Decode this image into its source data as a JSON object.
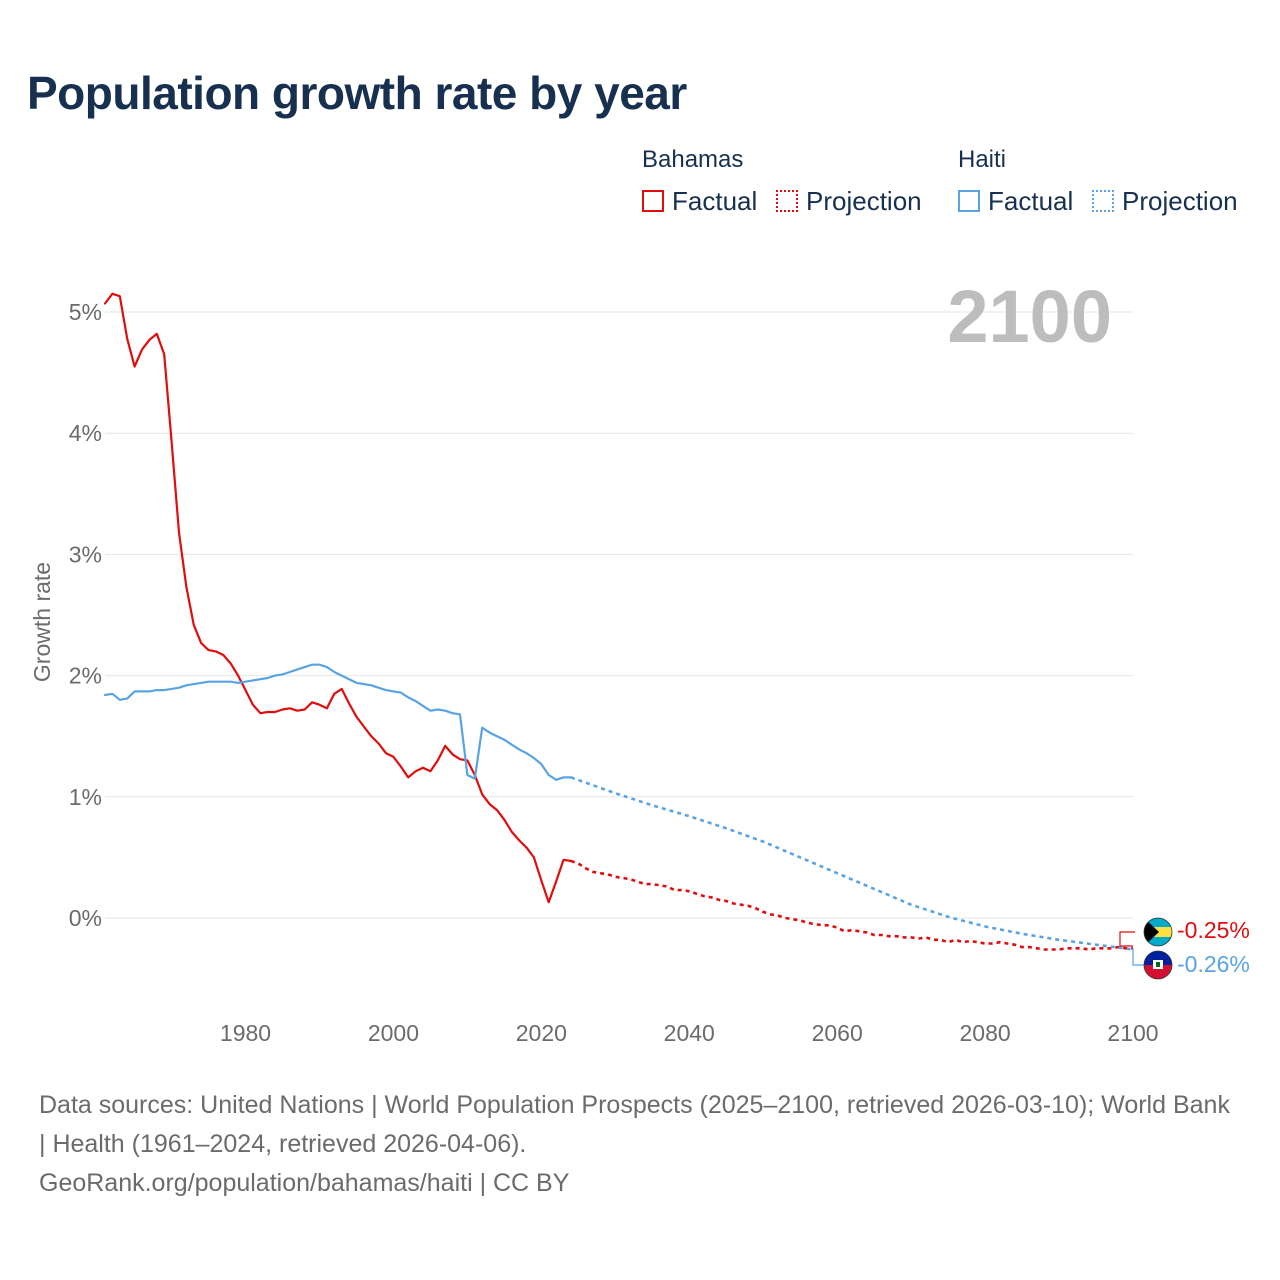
{
  "title": "Population growth rate by year",
  "legend": {
    "groups": [
      {
        "country": "Bahamas",
        "factual_label": "Factual",
        "projection_label": "Projection",
        "color": "#e00d0d"
      },
      {
        "country": "Haiti",
        "factual_label": "Factual",
        "projection_label": "Projection",
        "color": "#5aa3e3"
      }
    ]
  },
  "year_marker": "2100",
  "end_labels": {
    "bahamas": "-0.25%",
    "haiti": "-0.26%"
  },
  "footer": {
    "sources": "Data sources: United Nations | World Population Prospects (2025–2100, retrieved 2026-03-10); World Bank | Health (1961–2024, retrieved 2026-04-06).",
    "credit": "GeoRank.org/population/bahamas/haiti | CC BY"
  },
  "chart_data": {
    "type": "line",
    "title": "Population growth rate by year",
    "xlabel": "",
    "ylabel": "Growth rate",
    "xlim": [
      1961,
      2100
    ],
    "ylim": [
      -0.75,
      5.4
    ],
    "x_ticks": [
      1980,
      2000,
      2020,
      2040,
      2060,
      2080,
      2100
    ],
    "x_tick_labels": [
      "1980",
      "2000",
      "2020",
      "2040",
      "2060",
      "2080",
      "2100"
    ],
    "y_ticks": [
      0,
      1,
      2,
      3,
      4,
      5
    ],
    "y_tick_labels": [
      "0%",
      "1%",
      "2%",
      "3%",
      "4%",
      "5%"
    ],
    "grid": true,
    "series": [
      {
        "name": "Bahamas",
        "kind": "factual",
        "color": "#e00d0d",
        "x": [
          1961,
          1962,
          1963,
          1964,
          1965,
          1966,
          1967,
          1968,
          1969,
          1970,
          1971,
          1972,
          1973,
          1974,
          1975,
          1976,
          1977,
          1978,
          1979,
          1980,
          1981,
          1982,
          1983,
          1984,
          1985,
          1986,
          1987,
          1988,
          1989,
          1990,
          1991,
          1992,
          1993,
          1994,
          1995,
          1996,
          1997,
          1998,
          1999,
          2000,
          2001,
          2002,
          2003,
          2004,
          2005,
          2006,
          2007,
          2008,
          2009,
          2010,
          2011,
          2012,
          2013,
          2014,
          2015,
          2016,
          2017,
          2018,
          2019,
          2020,
          2021,
          2022,
          2023,
          2024
        ],
        "y": [
          5.07,
          5.15,
          5.13,
          4.78,
          4.55,
          4.69,
          4.77,
          4.82,
          4.65,
          3.93,
          3.18,
          2.73,
          2.42,
          2.27,
          2.21,
          2.2,
          2.17,
          2.1,
          2.0,
          1.88,
          1.76,
          1.69,
          1.7,
          1.7,
          1.72,
          1.73,
          1.71,
          1.72,
          1.78,
          1.76,
          1.73,
          1.85,
          1.89,
          1.77,
          1.66,
          1.58,
          1.5,
          1.44,
          1.36,
          1.33,
          1.25,
          1.16,
          1.21,
          1.24,
          1.21,
          1.3,
          1.42,
          1.35,
          1.31,
          1.3,
          1.18,
          1.02,
          0.94,
          0.89,
          0.81,
          0.71,
          0.64,
          0.58,
          0.5,
          0.31,
          0.13,
          0.3,
          0.48,
          0.47
        ]
      },
      {
        "name": "Bahamas",
        "kind": "projection",
        "color": "#e00d0d",
        "x": [
          2024,
          2025,
          2026,
          2027,
          2028,
          2029,
          2030,
          2031,
          2032,
          2033,
          2034,
          2035,
          2036,
          2037,
          2038,
          2039,
          2040,
          2041,
          2042,
          2043,
          2044,
          2045,
          2046,
          2047,
          2048,
          2049,
          2050,
          2051,
          2052,
          2053,
          2054,
          2055,
          2056,
          2057,
          2058,
          2059,
          2060,
          2061,
          2062,
          2063,
          2064,
          2065,
          2066,
          2067,
          2068,
          2069,
          2070,
          2071,
          2072,
          2073,
          2074,
          2075,
          2076,
          2077,
          2078,
          2079,
          2080,
          2081,
          2082,
          2083,
          2084,
          2085,
          2086,
          2087,
          2088,
          2089,
          2090,
          2091,
          2092,
          2093,
          2094,
          2095,
          2096,
          2097,
          2098,
          2099,
          2100
        ],
        "y": [
          0.47,
          0.45,
          0.41,
          0.38,
          0.37,
          0.36,
          0.34,
          0.33,
          0.32,
          0.3,
          0.28,
          0.28,
          0.27,
          0.26,
          0.23,
          0.23,
          0.22,
          0.2,
          0.18,
          0.17,
          0.15,
          0.14,
          0.12,
          0.11,
          0.1,
          0.08,
          0.05,
          0.03,
          0.02,
          0.0,
          -0.01,
          -0.02,
          -0.04,
          -0.05,
          -0.06,
          -0.06,
          -0.08,
          -0.11,
          -0.1,
          -0.11,
          -0.12,
          -0.14,
          -0.14,
          -0.15,
          -0.15,
          -0.16,
          -0.16,
          -0.17,
          -0.16,
          -0.18,
          -0.18,
          -0.2,
          -0.18,
          -0.2,
          -0.19,
          -0.2,
          -0.21,
          -0.21,
          -0.2,
          -0.21,
          -0.22,
          -0.24,
          -0.24,
          -0.25,
          -0.26,
          -0.26,
          -0.26,
          -0.25,
          -0.25,
          -0.25,
          -0.26,
          -0.25,
          -0.25,
          -0.25,
          -0.24,
          -0.25,
          -0.25
        ]
      },
      {
        "name": "Haiti",
        "kind": "factual",
        "color": "#5aa3e3",
        "x": [
          1961,
          1962,
          1963,
          1964,
          1965,
          1966,
          1967,
          1968,
          1969,
          1970,
          1971,
          1972,
          1973,
          1974,
          1975,
          1976,
          1977,
          1978,
          1979,
          1980,
          1981,
          1982,
          1983,
          1984,
          1985,
          1986,
          1987,
          1988,
          1989,
          1990,
          1991,
          1992,
          1993,
          1994,
          1995,
          1996,
          1997,
          1998,
          1999,
          2000,
          2001,
          2002,
          2003,
          2004,
          2005,
          2006,
          2007,
          2008,
          2009,
          2010,
          2011,
          2012,
          2013,
          2014,
          2015,
          2016,
          2017,
          2018,
          2019,
          2020,
          2021,
          2022,
          2023,
          2024
        ],
        "y": [
          1.84,
          1.85,
          1.8,
          1.81,
          1.87,
          1.87,
          1.87,
          1.88,
          1.88,
          1.89,
          1.9,
          1.92,
          1.93,
          1.94,
          1.95,
          1.95,
          1.95,
          1.95,
          1.94,
          1.95,
          1.96,
          1.97,
          1.98,
          2.0,
          2.01,
          2.03,
          2.05,
          2.07,
          2.09,
          2.09,
          2.07,
          2.03,
          2.0,
          1.97,
          1.94,
          1.93,
          1.92,
          1.9,
          1.88,
          1.87,
          1.86,
          1.82,
          1.79,
          1.75,
          1.71,
          1.72,
          1.71,
          1.69,
          1.68,
          1.18,
          1.15,
          1.57,
          1.53,
          1.5,
          1.47,
          1.43,
          1.39,
          1.36,
          1.32,
          1.27,
          1.18,
          1.14,
          1.16,
          1.16
        ]
      },
      {
        "name": "Haiti",
        "kind": "projection",
        "color": "#5aa3e3",
        "x": [
          2024,
          2030,
          2035,
          2040,
          2045,
          2050,
          2055,
          2060,
          2065,
          2070,
          2075,
          2080,
          2085,
          2090,
          2095,
          2100
        ],
        "y": [
          1.16,
          1.03,
          0.93,
          0.84,
          0.74,
          0.63,
          0.5,
          0.37,
          0.24,
          0.11,
          0.01,
          -0.07,
          -0.13,
          -0.18,
          -0.22,
          -0.26
        ]
      }
    ]
  }
}
